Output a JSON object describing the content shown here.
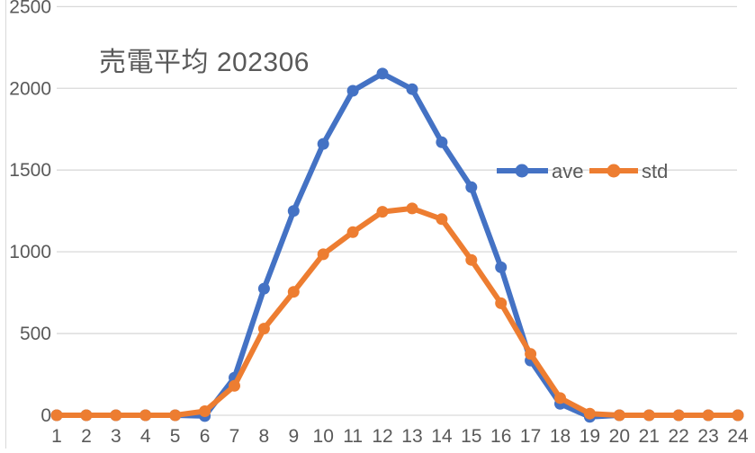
{
  "chart_data": {
    "type": "line",
    "title": "売電平均 202306",
    "x": [
      1,
      2,
      3,
      4,
      5,
      6,
      7,
      8,
      9,
      10,
      11,
      12,
      13,
      14,
      15,
      16,
      17,
      18,
      19,
      20,
      21,
      22,
      23,
      24
    ],
    "series": [
      {
        "name": "ave",
        "color": "#4472C4",
        "values": [
          0,
          0,
          0,
          0,
          0,
          -5,
          230,
          775,
          1250,
          1660,
          1985,
          2090,
          1995,
          1670,
          1395,
          905,
          335,
          70,
          -10,
          0,
          0,
          0,
          0,
          0
        ]
      },
      {
        "name": "std",
        "color": "#ED7D31",
        "values": [
          0,
          0,
          0,
          0,
          0,
          25,
          180,
          530,
          755,
          985,
          1120,
          1245,
          1265,
          1200,
          950,
          685,
          375,
          105,
          10,
          0,
          0,
          0,
          0,
          0
        ]
      }
    ],
    "yticks": [
      0,
      500,
      1000,
      1500,
      2000,
      2500
    ],
    "ylim": [
      0,
      2500
    ],
    "xlabel": "",
    "ylabel": "",
    "grid": "horizontal",
    "legend_position": "overlay-right-middle",
    "colors": {
      "grid": "#d9d9d9",
      "axis_text": "#595959",
      "title_text": "#595959",
      "background": "#ffffff"
    }
  }
}
